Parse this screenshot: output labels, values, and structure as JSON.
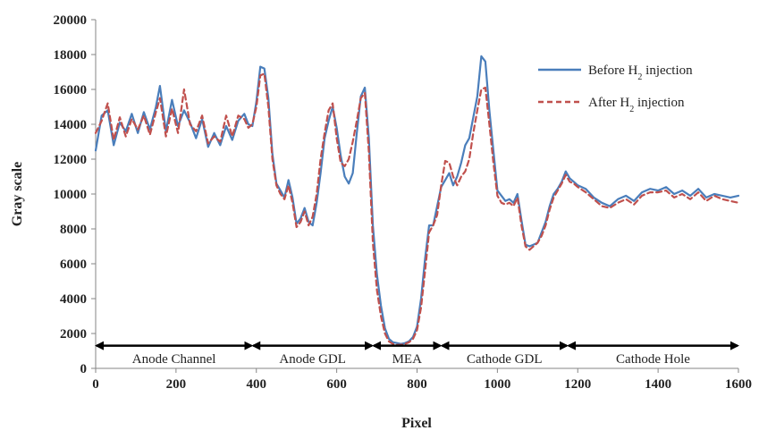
{
  "chart_data": {
    "type": "line",
    "title": "",
    "xlabel": "Pixel",
    "ylabel": "Gray scale",
    "xlim": [
      0,
      1600
    ],
    "ylim": [
      0,
      20000
    ],
    "x_ticks": [
      0,
      200,
      400,
      600,
      800,
      1000,
      1200,
      1400,
      1600
    ],
    "y_ticks": [
      0,
      2000,
      4000,
      6000,
      8000,
      10000,
      12000,
      14000,
      16000,
      18000,
      20000
    ],
    "grid": false,
    "legend": {
      "position": "top-right",
      "entries": [
        {
          "series": 0,
          "prefix": "Before H",
          "sub": "2",
          "suffix": " injection"
        },
        {
          "series": 1,
          "prefix": "After H",
          "sub": "2",
          "suffix": " injection"
        }
      ]
    },
    "series": [
      {
        "name": "Before H2 injection",
        "color": "#4a7ebb",
        "dash": "solid",
        "x": [
          0,
          15,
          30,
          45,
          60,
          75,
          90,
          105,
          120,
          135,
          150,
          160,
          175,
          190,
          205,
          220,
          235,
          250,
          265,
          280,
          295,
          310,
          325,
          340,
          355,
          370,
          380,
          390,
          400,
          410,
          420,
          430,
          440,
          450,
          460,
          470,
          480,
          490,
          500,
          510,
          520,
          530,
          540,
          550,
          560,
          570,
          580,
          590,
          600,
          610,
          620,
          630,
          640,
          650,
          660,
          670,
          680,
          690,
          700,
          710,
          720,
          730,
          740,
          750,
          760,
          770,
          780,
          790,
          800,
          810,
          820,
          830,
          840,
          850,
          860,
          870,
          880,
          890,
          900,
          910,
          920,
          930,
          940,
          950,
          960,
          970,
          980,
          990,
          1000,
          1010,
          1020,
          1030,
          1040,
          1050,
          1060,
          1070,
          1080,
          1090,
          1100,
          1110,
          1120,
          1130,
          1140,
          1150,
          1160,
          1170,
          1180,
          1190,
          1200,
          1220,
          1240,
          1260,
          1280,
          1300,
          1320,
          1340,
          1360,
          1380,
          1400,
          1420,
          1440,
          1460,
          1480,
          1500,
          1520,
          1540,
          1560,
          1580,
          1600
        ],
        "y": [
          12500,
          14500,
          14800,
          12800,
          14100,
          13600,
          14600,
          13500,
          14700,
          13700,
          15000,
          16200,
          13600,
          15400,
          13900,
          14800,
          14100,
          13200,
          14300,
          12700,
          13500,
          12800,
          13900,
          13100,
          14200,
          14600,
          14000,
          13900,
          15300,
          17300,
          17200,
          15500,
          12300,
          10600,
          10200,
          9800,
          10800,
          9800,
          8300,
          8600,
          9200,
          8400,
          8200,
          9500,
          11200,
          13200,
          14200,
          15000,
          13800,
          12200,
          11000,
          10600,
          11200,
          13500,
          15600,
          16100,
          13200,
          8200,
          5400,
          3600,
          2300,
          1700,
          1500,
          1450,
          1400,
          1450,
          1550,
          1800,
          2400,
          4000,
          6300,
          8200,
          8200,
          9300,
          10400,
          10800,
          11200,
          10500,
          11000,
          11800,
          12800,
          13200,
          14400,
          15600,
          17900,
          17600,
          14800,
          12500,
          10200,
          9900,
          9600,
          9700,
          9500,
          10000,
          8500,
          7100,
          7000,
          7100,
          7200,
          7800,
          8400,
          9300,
          10000,
          10300,
          10700,
          11300,
          10900,
          10700,
          10500,
          10300,
          9800,
          9500,
          9300,
          9700,
          9900,
          9600,
          10100,
          10300,
          10200,
          10400,
          10000,
          10200,
          9900,
          10300,
          9800,
          10000,
          9900,
          9800,
          9900
        ]
      },
      {
        "name": "After H2 injection",
        "color": "#c0504d",
        "dash": "dashed",
        "x": [
          0,
          15,
          30,
          45,
          60,
          75,
          90,
          105,
          120,
          135,
          150,
          160,
          175,
          190,
          205,
          220,
          235,
          250,
          265,
          280,
          295,
          310,
          325,
          340,
          355,
          370,
          380,
          390,
          400,
          410,
          420,
          430,
          440,
          450,
          460,
          470,
          480,
          490,
          500,
          510,
          520,
          530,
          540,
          550,
          560,
          570,
          580,
          590,
          600,
          610,
          620,
          630,
          640,
          650,
          660,
          670,
          680,
          690,
          700,
          710,
          720,
          730,
          740,
          750,
          760,
          770,
          780,
          790,
          800,
          810,
          820,
          830,
          840,
          850,
          860,
          870,
          880,
          890,
          900,
          910,
          920,
          930,
          940,
          950,
          960,
          970,
          980,
          990,
          1000,
          1010,
          1020,
          1030,
          1040,
          1050,
          1060,
          1070,
          1080,
          1090,
          1100,
          1110,
          1120,
          1130,
          1140,
          1150,
          1160,
          1170,
          1180,
          1190,
          1200,
          1220,
          1240,
          1260,
          1280,
          1300,
          1320,
          1340,
          1360,
          1380,
          1400,
          1420,
          1440,
          1460,
          1480,
          1500,
          1520,
          1540,
          1560,
          1580,
          1600
        ],
        "y": [
          13500,
          14200,
          15200,
          13100,
          14400,
          13300,
          14300,
          13700,
          14500,
          13400,
          14700,
          15500,
          13300,
          14900,
          13500,
          16000,
          14000,
          13600,
          14500,
          12900,
          13300,
          13000,
          14500,
          13300,
          14500,
          14300,
          13800,
          14000,
          15000,
          16800,
          16900,
          15000,
          12000,
          10500,
          10000,
          9700,
          10500,
          9500,
          8100,
          8400,
          9000,
          8200,
          8700,
          10000,
          12000,
          13500,
          14800,
          15200,
          13200,
          11800,
          11600,
          12000,
          13000,
          14200,
          15500,
          15800,
          12400,
          7200,
          4500,
          3000,
          2000,
          1550,
          1400,
          1350,
          1350,
          1400,
          1500,
          1700,
          2200,
          3500,
          5600,
          7800,
          8200,
          8800,
          10500,
          11900,
          11800,
          11000,
          10500,
          11000,
          11300,
          12000,
          13500,
          14800,
          16000,
          16100,
          14000,
          11800,
          9900,
          9500,
          9400,
          9500,
          9300,
          9800,
          8200,
          7000,
          6800,
          7000,
          7200,
          7600,
          8200,
          9100,
          9800,
          10200,
          10600,
          11100,
          10700,
          10600,
          10400,
          10100,
          9700,
          9300,
          9200,
          9500,
          9700,
          9400,
          9900,
          10100,
          10100,
          10200,
          9800,
          10000,
          9700,
          10100,
          9600,
          9900,
          9700,
          9600,
          9500
        ]
      }
    ],
    "regions": [
      {
        "label": "Anode Channel",
        "from": 0,
        "to": 390
      },
      {
        "label": "Anode GDL",
        "from": 390,
        "to": 690
      },
      {
        "label": "MEA",
        "from": 690,
        "to": 860
      },
      {
        "label": "Cathode GDL",
        "from": 860,
        "to": 1175
      },
      {
        "label": "Cathode Hole",
        "from": 1175,
        "to": 1600
      }
    ],
    "region_arrow_y": 1300,
    "region_label_y": 300
  }
}
